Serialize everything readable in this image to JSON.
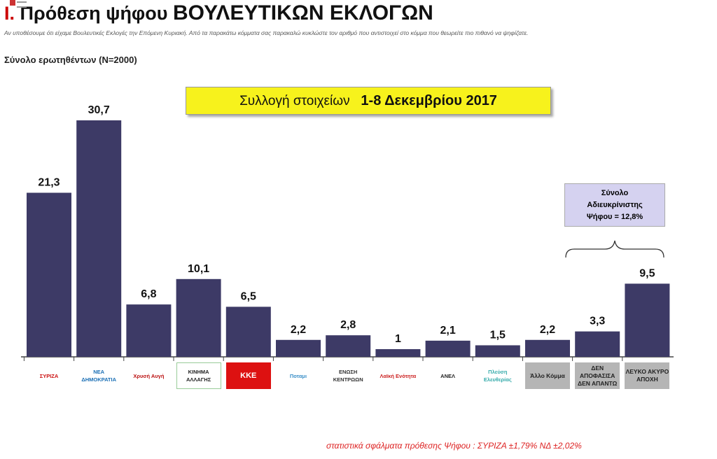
{
  "header": {
    "number": "I.",
    "title_a": "Πρόθεση ψήφου",
    "title_b": "ΒΟΥΛΕΥΤΙΚΩΝ ΕΚΛΟΓΩΝ",
    "question": "Αν υποθέσουμε ότι είχαμε Βουλευτικές Εκλογές την Επόμενη Κυριακή. Από τα παρακάτω κόμματα σας παρακαλώ κυκλώστε τον αριθμό που αντιστοιχεί στο κόμμα που θεωρείτε πιο πιθανό να ψηφίζατε.",
    "sample": "Σύνολο ερωτηθέντων (N=2000)"
  },
  "date_box": {
    "prefix": "Συλλογή στοιχείων",
    "dates": "1-8 Δεκεμβρίου 2017"
  },
  "annotation": {
    "line1": "Σύνολο",
    "line2": "Αδιευκρίνιστης",
    "line3": "Ψήφου = 12,8%"
  },
  "footnote": "στατιστικά σφάλματα πρόθεσης Ψήφου : ΣΥΡΙΖΑ ±1,79% ΝΔ ±2,02%",
  "chart_data": {
    "type": "bar",
    "categories": [
      "ΣΥΡΙΖΑ",
      "ΝΕΑ ΔΗΜΟΚΡΑΤΙΑ",
      "Χρυσή Αυγή",
      "ΚΙΝΗΜΑ ΑΛΛΑΓΗΣ",
      "ΚΚΕ",
      "Ποταμι",
      "ΕΝΩΣΗ ΚΕΝΤΡΩΩΝ",
      "Λαϊκή Ενότητα",
      "ΑΝΕΛ",
      "Πλεύση Ελευθερίας",
      "Άλλο Κόμμα",
      "ΔΕΝ ΑΠΟΦΑΣΙΣΑ ΔΕΝ ΑΠΑΝΤΩ",
      "ΛΕΥΚΟ ΑΚΥΡΟ ΑΠΟΧΗ"
    ],
    "values": [
      21.3,
      30.7,
      6.8,
      10.1,
      6.5,
      2.2,
      2.8,
      1,
      2.1,
      1.5,
      2.2,
      3.3,
      9.5
    ],
    "data_labels": [
      "21,3",
      "30,7",
      "6,8",
      "10,1",
      "6,5",
      "2,2",
      "2,8",
      "1",
      "2,1",
      "1,5",
      "2,2",
      "3,3",
      "9,5"
    ],
    "bar_color": "#3d3a66",
    "ylim": [
      0,
      32
    ]
  }
}
